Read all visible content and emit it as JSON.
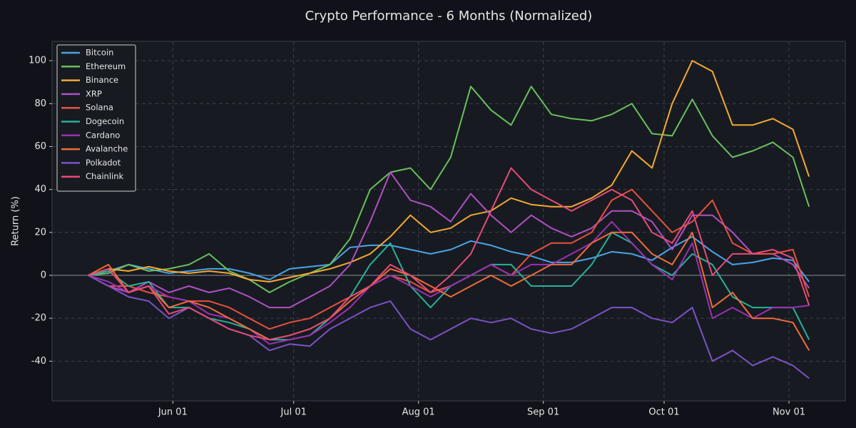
{
  "chart_data": {
    "type": "line",
    "title": "Crypto Performance - 6 Months (Normalized)",
    "y_label": "Return (%)",
    "grid": true,
    "legend": "upper left",
    "x": [
      "05-11",
      "05-16",
      "05-21",
      "05-26",
      "05-31",
      "06-05",
      "06-10",
      "06-15",
      "06-20",
      "06-25",
      "06-30",
      "07-05",
      "07-10",
      "07-15",
      "07-20",
      "07-25",
      "07-30",
      "08-04",
      "08-09",
      "08-14",
      "08-19",
      "08-24",
      "08-29",
      "09-03",
      "09-08",
      "09-13",
      "09-18",
      "09-23",
      "09-28",
      "10-03",
      "10-08",
      "10-13",
      "10-18",
      "10-23",
      "10-28",
      "11-02",
      "11-06"
    ],
    "xlim": [
      "05-02",
      "11-15"
    ],
    "xticks": [
      {
        "value": "06-01",
        "label": "Jun 01"
      },
      {
        "value": "07-01",
        "label": "Jul 01"
      },
      {
        "value": "08-01",
        "label": "Aug 01"
      },
      {
        "value": "09-01",
        "label": "Sep 01"
      },
      {
        "value": "10-01",
        "label": "Oct 01"
      },
      {
        "value": "11-01",
        "label": "Nov 01"
      }
    ],
    "ylim": [
      -58.5,
      109
    ],
    "yticks": [
      -40,
      -20,
      0,
      20,
      40,
      60,
      80,
      100
    ],
    "series": [
      {
        "name": "Bitcoin",
        "color": "#4aa3e8",
        "values": [
          0,
          2,
          5,
          3,
          1,
          2,
          3,
          3,
          1,
          -2,
          3,
          4,
          5,
          13,
          14,
          14,
          12,
          10,
          12,
          16,
          14,
          11,
          9,
          6,
          6,
          8,
          11,
          10,
          7,
          13,
          18,
          11,
          5,
          6,
          8,
          7,
          -3
        ]
      },
      {
        "name": "Ethereum",
        "color": "#6abf5e",
        "values": [
          0,
          1,
          5,
          2,
          3,
          5,
          10,
          2,
          -2,
          -8,
          -3,
          1,
          5,
          17,
          40,
          48,
          50,
          40,
          55,
          88,
          77,
          70,
          88,
          75,
          73,
          72,
          75,
          80,
          66,
          65,
          82,
          65,
          55,
          58,
          62,
          55,
          32
        ]
      },
      {
        "name": "Binance",
        "color": "#f5a832",
        "values": [
          0,
          3,
          2,
          4,
          2,
          1,
          2,
          1,
          -2,
          -3,
          -1,
          1,
          3,
          6,
          10,
          18,
          28,
          20,
          22,
          28,
          30,
          36,
          33,
          32,
          32,
          36,
          42,
          58,
          50,
          80,
          100,
          95,
          70,
          70,
          73,
          68,
          46
        ]
      },
      {
        "name": "XRP",
        "color": "#b24fc4",
        "values": [
          0,
          -5,
          -8,
          -3,
          -8,
          -5,
          -8,
          -6,
          -10,
          -15,
          -15,
          -10,
          -5,
          5,
          25,
          48,
          35,
          32,
          25,
          38,
          28,
          20,
          28,
          22,
          18,
          22,
          30,
          30,
          25,
          12,
          28,
          28,
          20,
          10,
          10,
          5,
          -6
        ]
      },
      {
        "name": "Solana",
        "color": "#e8503f",
        "values": [
          0,
          -5,
          -5,
          -8,
          -10,
          -12,
          -12,
          -15,
          -20,
          -25,
          -22,
          -20,
          -15,
          -10,
          -5,
          0,
          -3,
          -8,
          -5,
          0,
          5,
          0,
          10,
          15,
          15,
          20,
          35,
          40,
          30,
          20,
          25,
          35,
          15,
          10,
          10,
          12,
          -10
        ]
      },
      {
        "name": "Dogecoin",
        "color": "#2ab09a",
        "values": [
          0,
          2,
          -5,
          -3,
          -15,
          -15,
          -20,
          -22,
          -25,
          -30,
          -30,
          -28,
          -20,
          -10,
          5,
          15,
          -5,
          -15,
          -5,
          0,
          5,
          5,
          -5,
          -5,
          -5,
          5,
          20,
          15,
          5,
          0,
          10,
          5,
          -10,
          -15,
          -15,
          -15,
          -30
        ]
      },
      {
        "name": "Cardano",
        "color": "#9c2fb5",
        "values": [
          0,
          -3,
          -8,
          -5,
          -10,
          -12,
          -18,
          -20,
          -25,
          -32,
          -30,
          -28,
          -22,
          -15,
          -5,
          0,
          -5,
          -10,
          -5,
          0,
          5,
          0,
          5,
          5,
          10,
          15,
          25,
          15,
          5,
          -2,
          15,
          -20,
          -15,
          -20,
          -15,
          -15,
          -14
        ]
      },
      {
        "name": "Avalanche",
        "color": "#f26b3a",
        "values": [
          0,
          5,
          -8,
          -5,
          -15,
          -12,
          -15,
          -20,
          -25,
          -30,
          -28,
          -25,
          -20,
          -12,
          -5,
          3,
          0,
          -5,
          -10,
          -5,
          0,
          -5,
          0,
          5,
          5,
          15,
          20,
          20,
          10,
          5,
          20,
          -15,
          -8,
          -20,
          -20,
          -22,
          -35
        ]
      },
      {
        "name": "Polkadot",
        "color": "#7b52c8",
        "values": [
          0,
          -5,
          -10,
          -12,
          -20,
          -15,
          -20,
          -25,
          -28,
          -35,
          -32,
          -33,
          -25,
          -20,
          -15,
          -12,
          -25,
          -30,
          -25,
          -20,
          -22,
          -20,
          -25,
          -27,
          -25,
          -20,
          -15,
          -15,
          -20,
          -22,
          -15,
          -40,
          -35,
          -42,
          -38,
          -42,
          -48
        ]
      },
      {
        "name": "Chainlink",
        "color": "#e84a7a",
        "values": [
          0,
          3,
          -8,
          -5,
          -18,
          -15,
          -20,
          -25,
          -28,
          -30,
          -28,
          -25,
          -20,
          -10,
          -5,
          5,
          0,
          -8,
          0,
          10,
          30,
          50,
          40,
          35,
          30,
          35,
          40,
          35,
          20,
          15,
          30,
          0,
          10,
          10,
          12,
          8,
          -14
        ]
      }
    ]
  }
}
